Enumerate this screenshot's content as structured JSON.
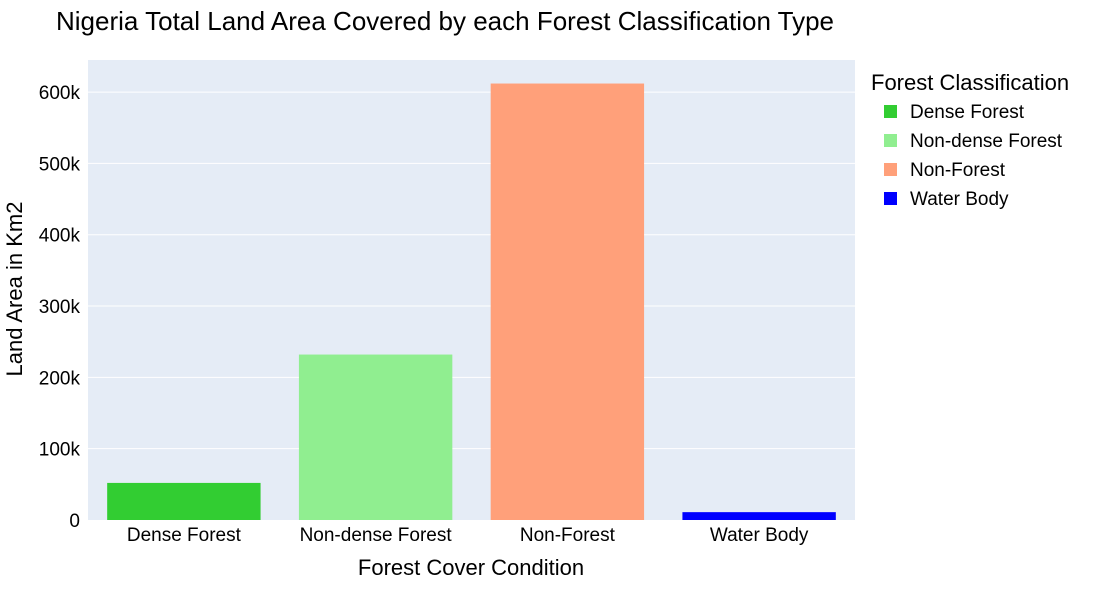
{
  "chart_data": {
    "type": "bar",
    "title": "Nigeria Total Land Area Covered by each Forest Classification Type",
    "xlabel": "Forest Cover Condition",
    "ylabel": "Land Area in Km2",
    "categories": [
      "Dense Forest",
      "Non-dense Forest",
      "Non-Forest",
      "Water Body"
    ],
    "values": [
      52000,
      232000,
      612000,
      11000
    ],
    "colors": [
      "#32cd32",
      "#90ee90",
      "#ffa07a",
      "#0000ff"
    ],
    "ylim": [
      0,
      645000
    ],
    "yticks": [
      0,
      100000,
      200000,
      300000,
      400000,
      500000,
      600000
    ],
    "ytick_labels": [
      "0",
      "100k",
      "200k",
      "300k",
      "400k",
      "500k",
      "600k"
    ],
    "grid": true,
    "plot_background": "#e5ecf6",
    "legend": {
      "title": "Forest Classification",
      "placement": "right",
      "entries": [
        "Dense Forest",
        "Non-dense Forest",
        "Non-Forest",
        "Water Body"
      ]
    }
  }
}
